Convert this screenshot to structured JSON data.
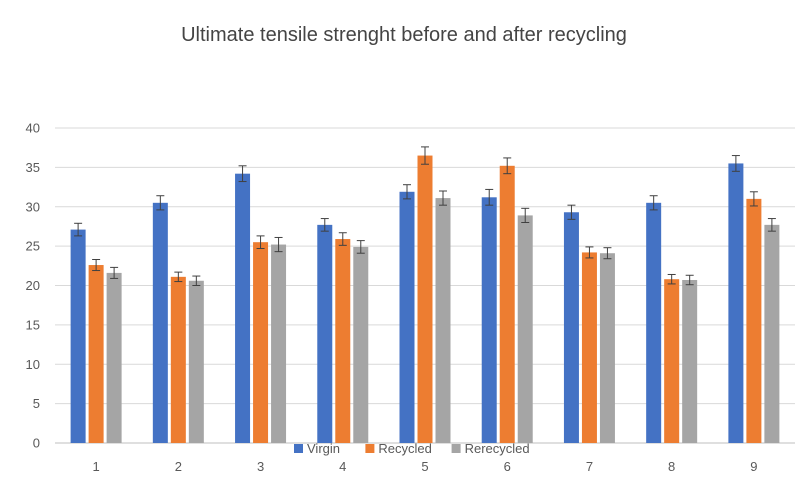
{
  "chart_data": {
    "type": "bar",
    "title": "Ultimate tensile strenght before and after recycling",
    "xlabel": "",
    "ylabel": "",
    "categories": [
      "1",
      "2",
      "3",
      "4",
      "5",
      "6",
      "7",
      "8",
      "9"
    ],
    "ylim": [
      0,
      40
    ],
    "yticks": [
      0,
      5,
      10,
      15,
      20,
      25,
      30,
      35,
      40
    ],
    "grid": true,
    "legend_position": "bottom",
    "error_bars": true,
    "series": [
      {
        "name": "Virgin",
        "color": "#4472C4",
        "values": [
          27.1,
          30.5,
          34.2,
          27.7,
          31.9,
          31.2,
          29.3,
          30.5,
          35.5
        ],
        "errors": [
          0.8,
          0.9,
          1.0,
          0.8,
          0.9,
          1.0,
          0.9,
          0.9,
          1.0
        ]
      },
      {
        "name": "Recycled",
        "color": "#ED7D31",
        "values": [
          22.6,
          21.1,
          25.5,
          25.9,
          36.5,
          35.2,
          24.2,
          20.8,
          31.0
        ],
        "errors": [
          0.7,
          0.6,
          0.8,
          0.8,
          1.1,
          1.0,
          0.7,
          0.6,
          0.9
        ]
      },
      {
        "name": "Rerecycled",
        "color": "#A5A5A5",
        "values": [
          21.6,
          20.6,
          25.2,
          24.9,
          31.1,
          28.9,
          24.1,
          20.7,
          27.7
        ],
        "errors": [
          0.7,
          0.6,
          0.9,
          0.8,
          0.9,
          0.9,
          0.7,
          0.6,
          0.8
        ]
      }
    ]
  }
}
